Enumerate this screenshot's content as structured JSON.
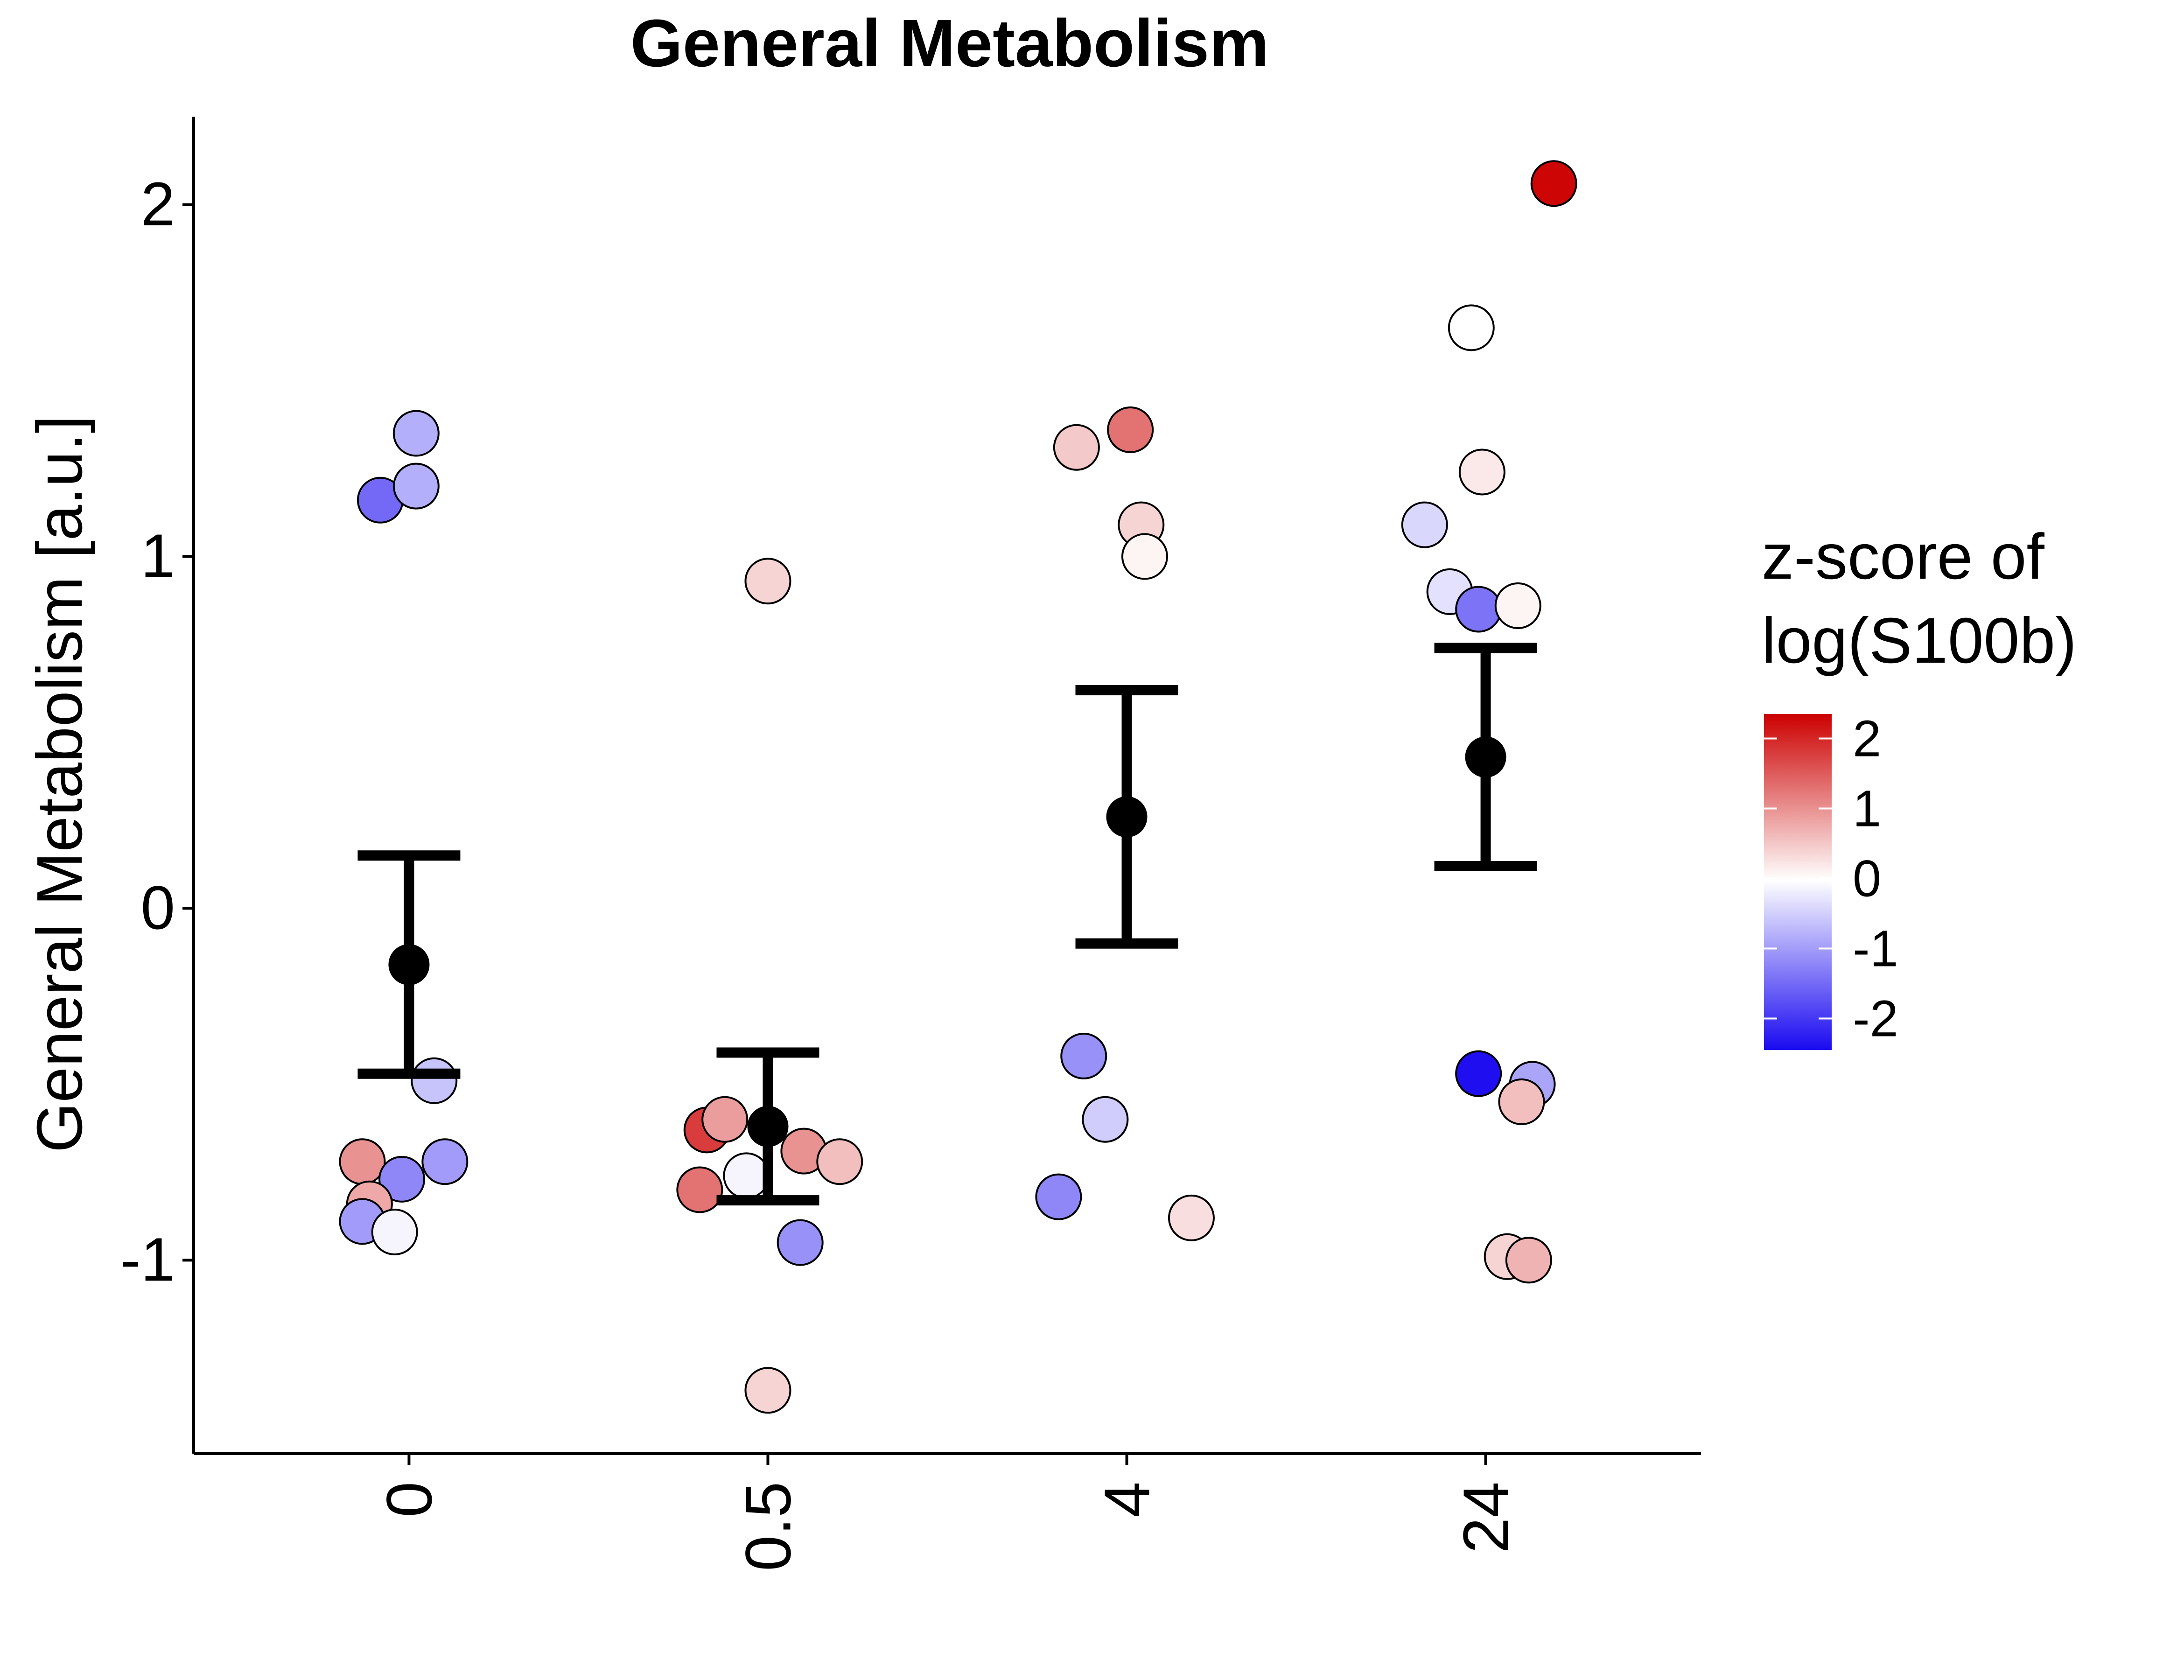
{
  "chart_data": {
    "type": "scatter",
    "title": "General Metabolism",
    "xlabel": "",
    "ylabel": "General Metabolism [a.u.]",
    "categories": [
      "0",
      "0.5",
      "4",
      "24"
    ],
    "y_ticks": [
      "-1",
      "0",
      "1",
      "2"
    ],
    "ylim": [
      -1.55,
      2.25
    ],
    "grid": false,
    "legend": {
      "title_lines": [
        "z-score of",
        "log(S100b)"
      ],
      "placement": "right",
      "ticks": [
        "2",
        "1",
        "0",
        "-1",
        "-2"
      ],
      "range": [
        -2.45,
        2.35
      ],
      "colors": {
        "low": "#1a0af0",
        "mid": "#ffffff",
        "high": "#cc0000"
      }
    },
    "summary": [
      {
        "category": "0",
        "mean": -0.16,
        "lower": -0.47,
        "upper": 0.15
      },
      {
        "category": "0.5",
        "mean": -0.62,
        "lower": -0.83,
        "upper": -0.41
      },
      {
        "category": "4",
        "mean": 0.26,
        "lower": -0.1,
        "upper": 0.62
      },
      {
        "category": "24",
        "mean": 0.43,
        "lower": 0.12,
        "upper": 0.74
      }
    ],
    "points": [
      {
        "category": "0",
        "jitter": 0.02,
        "y": 1.35,
        "z": -0.8
      },
      {
        "category": "0",
        "jitter": -0.08,
        "y": 1.16,
        "z": -1.5
      },
      {
        "category": "0",
        "jitter": 0.02,
        "y": 1.2,
        "z": -0.8
      },
      {
        "category": "0",
        "jitter": 0.07,
        "y": -0.49,
        "z": -0.6
      },
      {
        "category": "0",
        "jitter": 0.1,
        "y": -0.72,
        "z": -1.0
      },
      {
        "category": "0",
        "jitter": -0.13,
        "y": -0.72,
        "z": 1.0
      },
      {
        "category": "0",
        "jitter": -0.02,
        "y": -0.77,
        "z": -1.2
      },
      {
        "category": "0",
        "jitter": -0.11,
        "y": -0.84,
        "z": 0.8
      },
      {
        "category": "0",
        "jitter": -0.13,
        "y": -0.89,
        "z": -1.0
      },
      {
        "category": "0",
        "jitter": -0.04,
        "y": -0.92,
        "z": -0.1
      },
      {
        "category": "0.5",
        "jitter": 0.0,
        "y": 0.93,
        "z": 0.4
      },
      {
        "category": "0.5",
        "jitter": -0.17,
        "y": -0.63,
        "z": 1.8
      },
      {
        "category": "0.5",
        "jitter": -0.12,
        "y": -0.6,
        "z": 0.9
      },
      {
        "category": "0.5",
        "jitter": 0.1,
        "y": -0.69,
        "z": 1.0
      },
      {
        "category": "0.5",
        "jitter": 0.2,
        "y": -0.72,
        "z": 0.6
      },
      {
        "category": "0.5",
        "jitter": -0.06,
        "y": -0.76,
        "z": -0.1
      },
      {
        "category": "0.5",
        "jitter": -0.19,
        "y": -0.8,
        "z": 1.3
      },
      {
        "category": "0.5",
        "jitter": 0.09,
        "y": -0.95,
        "z": -1.1
      },
      {
        "category": "0.5",
        "jitter": 0.0,
        "y": -1.37,
        "z": 0.4
      },
      {
        "category": "4",
        "jitter": -0.14,
        "y": 1.31,
        "z": 0.5
      },
      {
        "category": "4",
        "jitter": 0.01,
        "y": 1.36,
        "z": 1.3
      },
      {
        "category": "4",
        "jitter": 0.04,
        "y": 1.09,
        "z": 0.4
      },
      {
        "category": "4",
        "jitter": 0.05,
        "y": 1.0,
        "z": 0.1
      },
      {
        "category": "4",
        "jitter": -0.12,
        "y": -0.42,
        "z": -1.1
      },
      {
        "category": "4",
        "jitter": -0.06,
        "y": -0.6,
        "z": -0.5
      },
      {
        "category": "4",
        "jitter": -0.19,
        "y": -0.82,
        "z": -1.2
      },
      {
        "category": "4",
        "jitter": 0.18,
        "y": -0.88,
        "z": 0.3
      },
      {
        "category": "24",
        "jitter": 0.19,
        "y": 2.06,
        "z": 2.3
      },
      {
        "category": "24",
        "jitter": -0.04,
        "y": 1.65,
        "z": 0.0
      },
      {
        "category": "24",
        "jitter": -0.01,
        "y": 1.24,
        "z": 0.2
      },
      {
        "category": "24",
        "jitter": -0.17,
        "y": 1.09,
        "z": -0.4
      },
      {
        "category": "24",
        "jitter": -0.1,
        "y": 0.9,
        "z": -0.3
      },
      {
        "category": "24",
        "jitter": -0.02,
        "y": 0.85,
        "z": -1.4
      },
      {
        "category": "24",
        "jitter": 0.09,
        "y": 0.86,
        "z": 0.1
      },
      {
        "category": "24",
        "jitter": -0.02,
        "y": -0.47,
        "z": -2.4
      },
      {
        "category": "24",
        "jitter": 0.13,
        "y": -0.5,
        "z": -0.9
      },
      {
        "category": "24",
        "jitter": 0.1,
        "y": -0.55,
        "z": 0.6
      },
      {
        "category": "24",
        "jitter": 0.06,
        "y": -0.99,
        "z": 0.4
      },
      {
        "category": "24",
        "jitter": 0.12,
        "y": -1.0,
        "z": 0.7
      }
    ]
  }
}
